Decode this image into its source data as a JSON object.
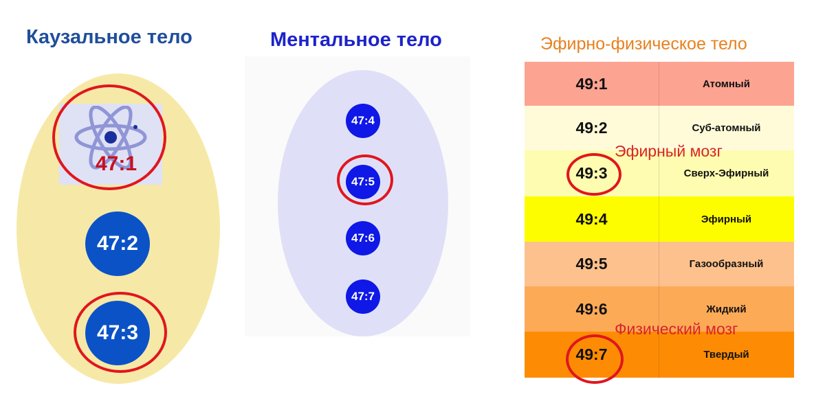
{
  "causal_body": {
    "title": "Каузальное тело",
    "items": [
      "47:1",
      "47:2",
      "47:3"
    ],
    "highlighted": [
      "47:1",
      "47:3"
    ]
  },
  "mental_body": {
    "title": "Ментальное тело",
    "items": [
      "47:4",
      "47:5",
      "47:6",
      "47:7"
    ],
    "highlighted": [
      "47:5"
    ]
  },
  "etheric_body": {
    "title": "Эфирно-физическое тело",
    "rows": [
      {
        "code": "49:1",
        "name": "Атомный",
        "color": "#fda391"
      },
      {
        "code": "49:2",
        "name": "Суб-атомный",
        "color": "#fffbd9"
      },
      {
        "code": "49:3",
        "name": "Сверх-Эфирный",
        "color": "#fefcb0"
      },
      {
        "code": "49:4",
        "name": "Эфирный",
        "color": "#fdfd00"
      },
      {
        "code": "49:5",
        "name": "Газообразный",
        "color": "#fdc18d"
      },
      {
        "code": "49:6",
        "name": "Жидкий",
        "color": "#fdaa57"
      },
      {
        "code": "49:7",
        "name": "Твердый",
        "color": "#fd8c04"
      }
    ],
    "highlighted": [
      "49:3",
      "49:7"
    ]
  },
  "labels": {
    "etheric_brain": "Эфирный мозг",
    "physical_brain": "Физический мозг"
  },
  "colors": {
    "highlight_ring": "#e0161e",
    "causal_egg": "#f6e9a8",
    "causal_circle": "#0b52c7",
    "mental_egg": "#dfe0f7",
    "mental_circle": "#0f18e6"
  },
  "icons": {
    "atom": "atom-icon"
  }
}
